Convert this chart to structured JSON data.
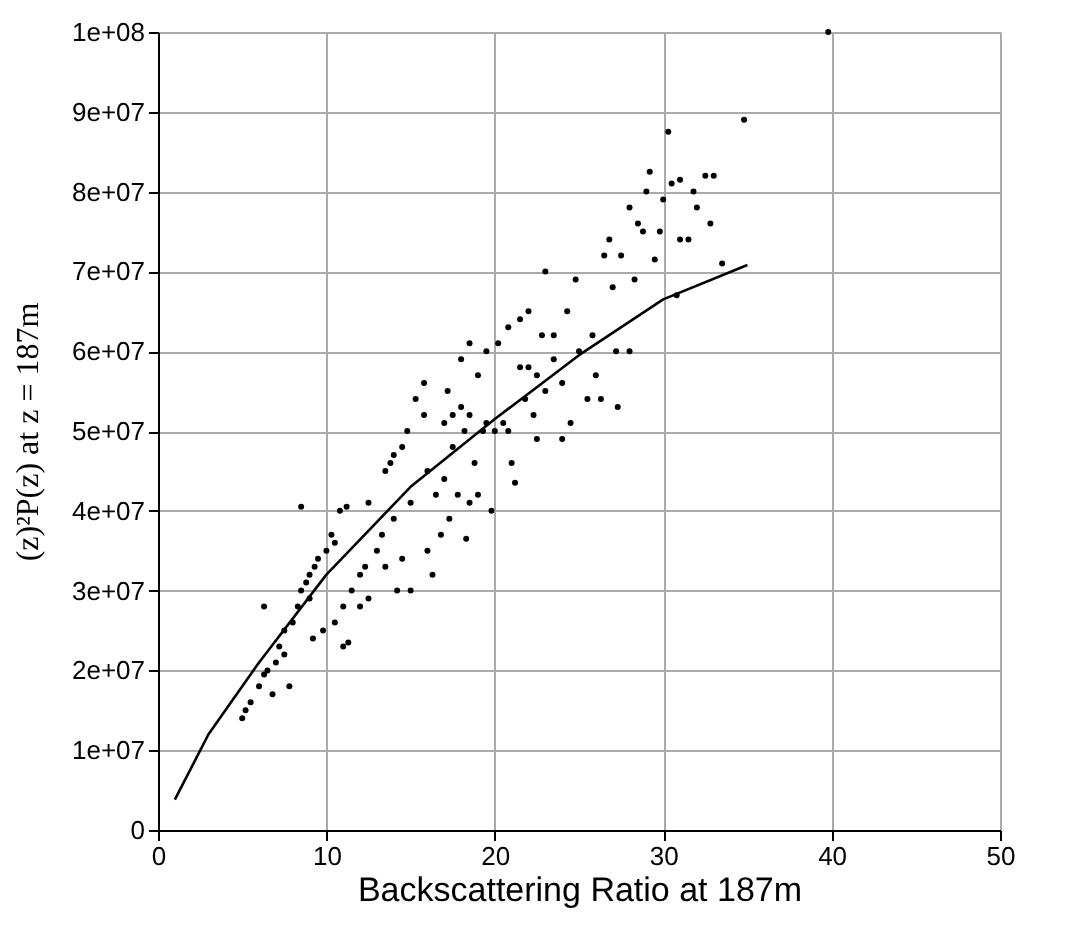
{
  "chart_data": {
    "type": "scatter",
    "xlabel": "Backscattering Ratio at 187m",
    "ylabel": "(z)²P(z)   at z = 187m",
    "xlim": [
      0,
      50
    ],
    "ylim": [
      0,
      100000000
    ],
    "xticks": [
      0,
      10,
      20,
      30,
      40,
      50
    ],
    "yticks": [
      0,
      {
        "value": 10000000,
        "label": "1e+07"
      },
      {
        "value": 20000000,
        "label": "2e+07"
      },
      {
        "value": 30000000,
        "label": "3e+07"
      },
      {
        "value": 40000000,
        "label": "4e+07"
      },
      {
        "value": 50000000,
        "label": "5e+07"
      },
      {
        "value": 60000000,
        "label": "6e+07"
      },
      {
        "value": 70000000,
        "label": "7e+07"
      },
      {
        "value": 80000000,
        "label": "8e+07"
      },
      {
        "value": 90000000,
        "label": "9e+07"
      },
      {
        "value": 100000000,
        "label": "1e+08"
      }
    ],
    "grid": true,
    "series": [
      {
        "marker": "circle",
        "color": "#000000",
        "x": [
          5,
          5.2,
          5.5,
          6,
          6.3,
          6.5,
          6.8,
          7,
          7.2,
          7.5,
          7.5,
          7.8,
          6.3,
          8,
          8.3,
          8.5,
          8.5,
          8.8,
          9,
          9.3,
          9.5,
          9,
          9.2,
          9.8,
          10,
          10.3,
          10.5,
          10.8,
          11.2,
          10.5,
          11,
          11,
          11.3,
          11.5,
          12,
          12,
          12.3,
          12.5,
          12.5,
          13,
          13.3,
          13.5,
          13.5,
          13.8,
          14,
          14,
          14.2,
          14.5,
          14.8,
          14.5,
          15,
          15,
          15.3,
          15.8,
          15.8,
          16,
          16,
          16.3,
          16.5,
          16.8,
          17,
          17,
          17.2,
          17.3,
          17.5,
          17.5,
          17.8,
          18,
          18,
          18.2,
          18.3,
          18.5,
          18.5,
          18.5,
          18.8,
          19,
          19,
          19.3,
          19.5,
          19.5,
          19.8,
          20,
          20.2,
          20.5,
          20.8,
          20.8,
          21,
          21.2,
          21.5,
          21.5,
          21.8,
          22,
          22,
          22.3,
          22.5,
          22.5,
          22.8,
          23,
          23,
          23.5,
          23.5,
          24,
          24,
          24.3,
          24.5,
          24.8,
          25,
          25.5,
          25.8,
          26,
          26.3,
          26.5,
          26.8,
          27,
          27.2,
          27.3,
          27.5,
          28,
          28,
          28.3,
          28.5,
          28.8,
          29,
          29.2,
          29.5,
          29.8,
          30,
          30.3,
          30.5,
          30.8,
          31,
          31,
          31.5,
          31.8,
          32,
          32.5,
          32.8,
          33,
          33.5,
          34.8,
          39.8
        ],
        "values": [
          14000000,
          15000000,
          16000000,
          18000000,
          19500000,
          20000000,
          17000000,
          21000000,
          23000000,
          22000000,
          25000000,
          18000000,
          28000000,
          26000000,
          28000000,
          30000000,
          40500000,
          31000000,
          32000000,
          33000000,
          34000000,
          29000000,
          24000000,
          25000000,
          35000000,
          37000000,
          36000000,
          40000000,
          40500000,
          26000000,
          28000000,
          23000000,
          23500000,
          30000000,
          32000000,
          28000000,
          33000000,
          41000000,
          29000000,
          35000000,
          37000000,
          33000000,
          45000000,
          46000000,
          39000000,
          47000000,
          30000000,
          48000000,
          50000000,
          34000000,
          41000000,
          30000000,
          54000000,
          52000000,
          56000000,
          35000000,
          45000000,
          32000000,
          42000000,
          37000000,
          51000000,
          44000000,
          55000000,
          39000000,
          52000000,
          48000000,
          42000000,
          53000000,
          59000000,
          50000000,
          36500000,
          52000000,
          61000000,
          41000000,
          46000000,
          57000000,
          42000000,
          50000000,
          51000000,
          60000000,
          40000000,
          50000000,
          61000000,
          51000000,
          50000000,
          63000000,
          46000000,
          43500000,
          58000000,
          64000000,
          54000000,
          65000000,
          58000000,
          52000000,
          49000000,
          57000000,
          62000000,
          55000000,
          70000000,
          62000000,
          59000000,
          56000000,
          49000000,
          65000000,
          51000000,
          69000000,
          60000000,
          54000000,
          62000000,
          57000000,
          54000000,
          72000000,
          74000000,
          68000000,
          60000000,
          53000000,
          72000000,
          78000000,
          60000000,
          69000000,
          76000000,
          75000000,
          80000000,
          82500000,
          71500000,
          75000000,
          79000000,
          87500000,
          81000000,
          67000000,
          81500000,
          74000000,
          74000000,
          80000000,
          78000000,
          82000000,
          76000000,
          82000000,
          71000000,
          89000000,
          100000000
        ]
      },
      {
        "type": "line",
        "marker": "none",
        "line_style": "solid",
        "color": "#000000",
        "x": [
          1,
          3,
          6,
          10,
          15,
          20,
          25,
          30,
          35
        ],
        "values": [
          3800000,
          12000000,
          21000000,
          32000000,
          43000000,
          51500000,
          59500000,
          66500000,
          70800000
        ]
      }
    ]
  }
}
